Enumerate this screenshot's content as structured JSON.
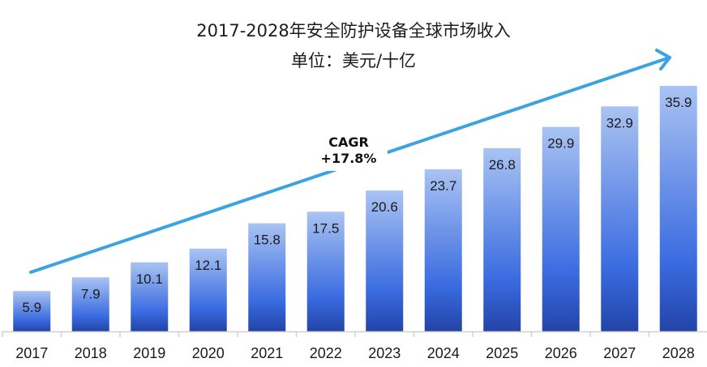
{
  "title": "2017-2028年安全防护设备全球市场收入",
  "subtitle": "单位：美元/十亿",
  "annotation": {
    "line1": "CAGR",
    "line2": "+17.8%"
  },
  "colors": {
    "bar_top": "#a9c3f2",
    "bar_mid": "#3a6be0",
    "bar_bottom": "#2344a8",
    "trend_arrow": "#3ba3df",
    "axis": "#d0d0d0"
  },
  "chart_data": {
    "type": "bar",
    "title": "2017-2028年安全防护设备全球市场收入",
    "subtitle": "单位：美元/十亿",
    "categories": [
      "2017",
      "2018",
      "2019",
      "2020",
      "2021",
      "2022",
      "2023",
      "2024",
      "2025",
      "2026",
      "2027",
      "2028"
    ],
    "values": [
      5.9,
      7.9,
      10.1,
      12.1,
      15.8,
      17.5,
      20.6,
      23.7,
      26.8,
      29.9,
      32.9,
      35.9
    ],
    "xlabel": "",
    "ylabel": "美元/十亿",
    "ylim": [
      0,
      36
    ],
    "grid": false,
    "legend": "none",
    "data_labels": true,
    "annotations": [
      {
        "text": "CAGR +17.8%",
        "type": "trend-arrow",
        "from": "2017",
        "to": "2028"
      }
    ]
  }
}
